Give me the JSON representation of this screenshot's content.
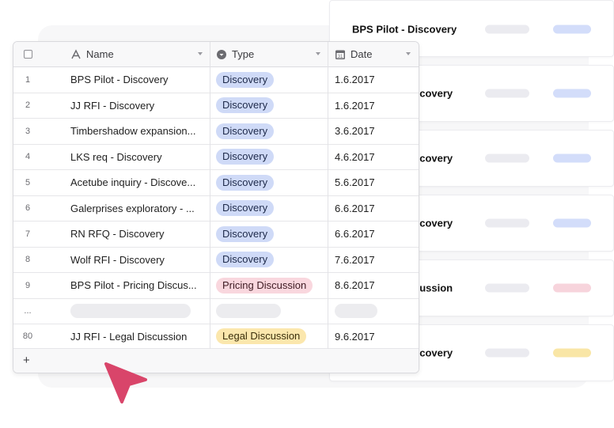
{
  "grid": {
    "columns": {
      "name": "Name",
      "type": "Type",
      "date": "Date"
    },
    "rows": [
      {
        "num": "1",
        "name": "BPS Pilot - Discovery",
        "type": "Discovery",
        "date": "1.6.2017"
      },
      {
        "num": "2",
        "name": "JJ RFI - Discovery",
        "type": "Discovery",
        "date": "1.6.2017"
      },
      {
        "num": "3",
        "name": "Timbershadow expansion...",
        "type": "Discovery",
        "date": "3.6.2017"
      },
      {
        "num": "4",
        "name": "LKS req - Discovery",
        "type": "Discovery",
        "date": "4.6.2017"
      },
      {
        "num": "5",
        "name": "Acetube inquiry - Discove...",
        "type": "Discovery",
        "date": "5.6.2017"
      },
      {
        "num": "6",
        "name": "Galerprises exploratory - ...",
        "type": "Discovery",
        "date": "6.6.2017"
      },
      {
        "num": "7",
        "name": "RN RFQ - Discovery",
        "type": "Discovery",
        "date": "6.6.2017"
      },
      {
        "num": "8",
        "name": "Wolf RFI - Discovery",
        "type": "Discovery",
        "date": "7.6.2017"
      },
      {
        "num": "9",
        "name": "BPS Pilot - Pricing Discus...",
        "type": "Pricing Discussion",
        "date": "8.6.2017"
      }
    ],
    "ellipsis_row": {
      "num": "..."
    },
    "last_row": {
      "num": "80",
      "name": "JJ RFI - Legal Discussion",
      "type": "Legal Discussion",
      "date": "9.6.2017"
    },
    "add_label": "+"
  },
  "cards": [
    {
      "title": "BPS Pilot - Discovery",
      "accent": "#d3ddfa"
    },
    {
      "title": "scovery",
      "accent": "#d3ddfa"
    },
    {
      "title": "scovery",
      "accent": "#d3ddfa"
    },
    {
      "title": "scovery",
      "accent": "#d3ddfa"
    },
    {
      "title": "cussion",
      "accent": "#f7d4dc"
    },
    {
      "title": "scovery",
      "accent": "#f9e6a6"
    }
  ],
  "colors": {
    "discovery": "#cfdaf7",
    "pricing": "#f9d7de",
    "legal": "#fbe7ad",
    "cursor": "#d9456a"
  },
  "icons": {
    "name_column": "text-field-icon",
    "type_column": "single-select-icon",
    "date_column": "calendar-icon",
    "cursor": "mouse-pointer-icon"
  }
}
